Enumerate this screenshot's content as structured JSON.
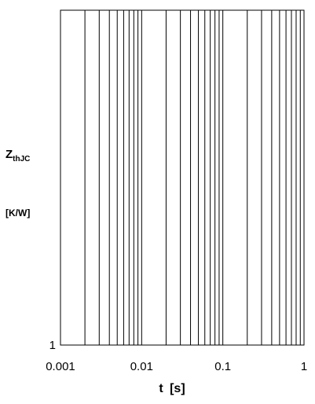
{
  "chart_data": {
    "type": "line",
    "title": "",
    "xlabel": "t  [s]",
    "ylabel_main": "Z",
    "ylabel_sub": "thJC",
    "ylabel_unit": "[K/W]",
    "x_scale": "log",
    "xlim": [
      0.001,
      1
    ],
    "x_ticks": [
      0.001,
      0.01,
      0.1,
      1
    ],
    "x_tick_labels": [
      "0.001",
      "0.01",
      "0.1",
      "1"
    ],
    "y_tick_labels": [
      "1"
    ],
    "grid": "vertical log gridlines",
    "series": []
  }
}
